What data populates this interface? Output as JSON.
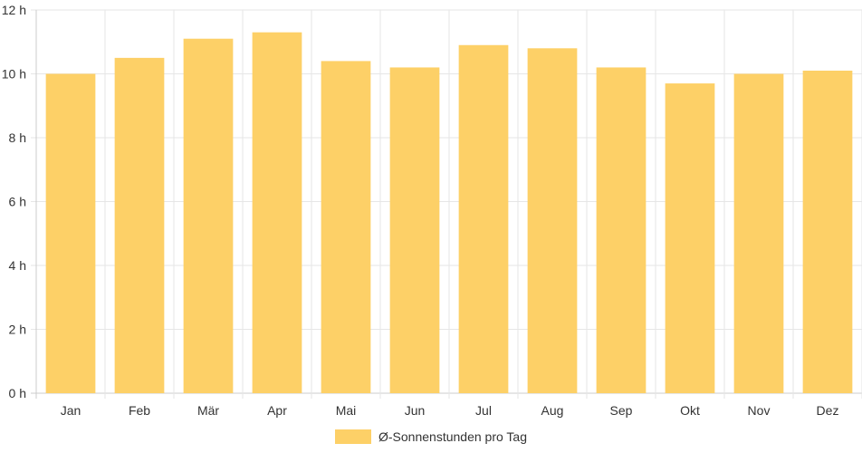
{
  "chart_data": {
    "type": "bar",
    "categories": [
      "Jan",
      "Feb",
      "Mär",
      "Apr",
      "Mai",
      "Jun",
      "Jul",
      "Aug",
      "Sep",
      "Okt",
      "Nov",
      "Dez"
    ],
    "series": [
      {
        "name": "Ø-Sonnenstunden pro Tag",
        "values": [
          10.0,
          10.5,
          11.1,
          11.3,
          10.4,
          10.2,
          10.9,
          10.8,
          10.2,
          9.7,
          10.0,
          10.1
        ]
      }
    ],
    "ylim": [
      0,
      12
    ],
    "y_ticks": [
      "0 h",
      "2 h",
      "4 h",
      "6 h",
      "8 h",
      "10 h",
      "12 h"
    ],
    "grid": true,
    "legend_position": "bottom",
    "colors": {
      "bar": "#fdd067",
      "grid": "#e6e6e6",
      "axis": "#cccccc",
      "text": "#333333"
    }
  }
}
